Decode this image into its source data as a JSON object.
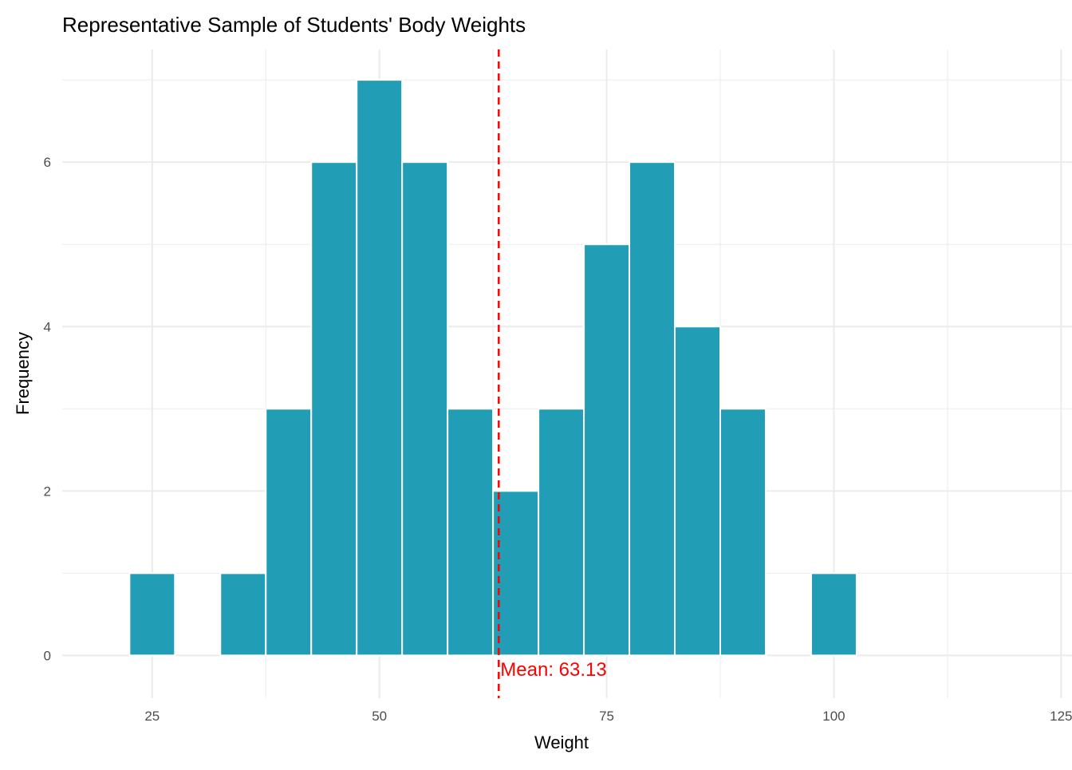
{
  "chart_data": {
    "type": "bar",
    "title": "Representative Sample of Students' Body Weights",
    "xlabel": "Weight",
    "ylabel": "Frequency",
    "bin_width": 5,
    "bins": [
      {
        "center": 25,
        "count": 1
      },
      {
        "center": 30,
        "count": 0
      },
      {
        "center": 35,
        "count": 1
      },
      {
        "center": 40,
        "count": 3
      },
      {
        "center": 45,
        "count": 6
      },
      {
        "center": 50,
        "count": 7
      },
      {
        "center": 55,
        "count": 6
      },
      {
        "center": 60,
        "count": 3
      },
      {
        "center": 65,
        "count": 2
      },
      {
        "center": 70,
        "count": 3
      },
      {
        "center": 75,
        "count": 5
      },
      {
        "center": 80,
        "count": 6
      },
      {
        "center": 85,
        "count": 4
      },
      {
        "center": 90,
        "count": 3
      },
      {
        "center": 95,
        "count": 0
      },
      {
        "center": 100,
        "count": 1
      }
    ],
    "xlim": [
      15.1,
      126.2
    ],
    "ylim": [
      -0.52,
      7.37
    ],
    "xticks": [
      25,
      50,
      75,
      100,
      125
    ],
    "yticks": [
      0,
      2,
      4,
      6
    ],
    "grid": true,
    "mean": {
      "value": 63.13,
      "label": "Mean: 63.13",
      "color": "#FF0000"
    },
    "colors": {
      "bar_fill": "#219EB5",
      "bar_outline": "#FFFFFF",
      "grid": "#EBEBEB"
    }
  }
}
